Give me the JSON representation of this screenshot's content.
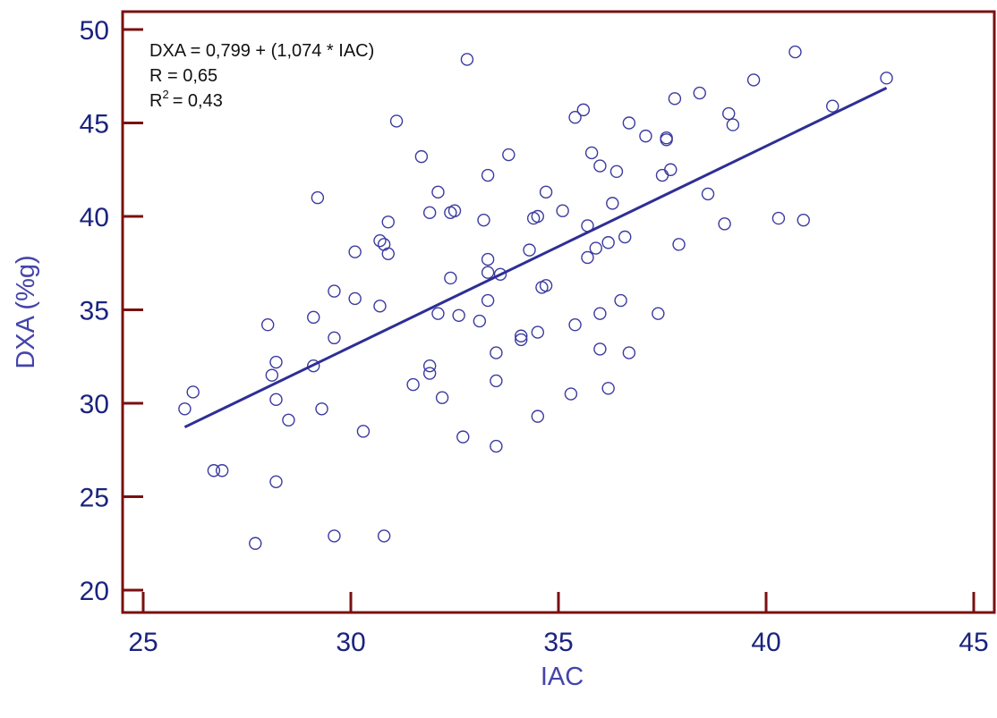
{
  "chart_data": {
    "type": "scatter",
    "xlabel": "IAC",
    "ylabel": "DXA (%g)",
    "xlim": [
      25,
      45
    ],
    "ylim": [
      20,
      50
    ],
    "x_ticks": [
      25,
      30,
      35,
      40,
      45
    ],
    "y_ticks": [
      20,
      25,
      30,
      35,
      40,
      45,
      50
    ],
    "grid": false,
    "colors": {
      "frame": "#7a1010",
      "points": "#3a3aa0",
      "line": "#2e2e96",
      "ticks": "#1a237e",
      "axis_title": "#4444aa"
    },
    "annotations": {
      "equation": "DXA = 0,799 + (1,074 * IAC)",
      "r": "R = 0,65",
      "r2_prefix": "R",
      "r2_sup": "2",
      "r2_value": "= 0,43"
    },
    "regression": {
      "intercept": 0.799,
      "slope": 1.074,
      "x_range": [
        26,
        42.9
      ]
    },
    "series": [
      {
        "points": [
          [
            26.0,
            29.7
          ],
          [
            26.2,
            30.6
          ],
          [
            26.7,
            26.4
          ],
          [
            26.9,
            26.4
          ],
          [
            27.7,
            22.5
          ],
          [
            28.0,
            34.2
          ],
          [
            28.1,
            31.5
          ],
          [
            28.2,
            32.2
          ],
          [
            28.2,
            30.2
          ],
          [
            28.2,
            25.8
          ],
          [
            28.5,
            29.1
          ],
          [
            29.1,
            34.6
          ],
          [
            29.1,
            32.0
          ],
          [
            29.2,
            41.0
          ],
          [
            29.3,
            29.7
          ],
          [
            29.6,
            36.0
          ],
          [
            29.6,
            33.5
          ],
          [
            29.6,
            22.9
          ],
          [
            30.1,
            38.1
          ],
          [
            30.1,
            35.6
          ],
          [
            30.3,
            28.5
          ],
          [
            30.7,
            38.7
          ],
          [
            30.7,
            35.2
          ],
          [
            30.8,
            38.5
          ],
          [
            30.8,
            22.9
          ],
          [
            30.9,
            38.0
          ],
          [
            30.9,
            39.7
          ],
          [
            31.1,
            45.1
          ],
          [
            31.5,
            31.0
          ],
          [
            31.7,
            43.2
          ],
          [
            31.9,
            40.2
          ],
          [
            31.9,
            32.0
          ],
          [
            31.9,
            31.6
          ],
          [
            32.1,
            34.8
          ],
          [
            32.1,
            41.3
          ],
          [
            32.2,
            30.3
          ],
          [
            32.4,
            36.7
          ],
          [
            32.4,
            40.2
          ],
          [
            32.5,
            40.3
          ],
          [
            32.6,
            34.7
          ],
          [
            32.7,
            28.2
          ],
          [
            32.8,
            48.4
          ],
          [
            33.1,
            34.4
          ],
          [
            33.2,
            39.8
          ],
          [
            33.3,
            42.2
          ],
          [
            33.3,
            37.7
          ],
          [
            33.3,
            37.0
          ],
          [
            33.3,
            35.5
          ],
          [
            33.5,
            32.7
          ],
          [
            33.5,
            31.2
          ],
          [
            33.5,
            27.7
          ],
          [
            33.6,
            36.9
          ],
          [
            33.8,
            43.3
          ],
          [
            34.1,
            33.6
          ],
          [
            34.1,
            33.4
          ],
          [
            34.3,
            38.2
          ],
          [
            34.4,
            39.9
          ],
          [
            34.5,
            33.8
          ],
          [
            34.5,
            29.3
          ],
          [
            34.5,
            40.0
          ],
          [
            34.6,
            36.2
          ],
          [
            34.7,
            36.3
          ],
          [
            34.7,
            41.3
          ],
          [
            35.1,
            40.3
          ],
          [
            35.3,
            30.5
          ],
          [
            35.4,
            34.2
          ],
          [
            35.4,
            45.3
          ],
          [
            35.6,
            45.7
          ],
          [
            35.7,
            39.5
          ],
          [
            35.7,
            37.8
          ],
          [
            35.8,
            43.4
          ],
          [
            35.9,
            38.3
          ],
          [
            36.0,
            42.7
          ],
          [
            36.0,
            34.8
          ],
          [
            36.0,
            32.9
          ],
          [
            36.2,
            30.8
          ],
          [
            36.2,
            38.6
          ],
          [
            36.3,
            40.7
          ],
          [
            36.4,
            42.4
          ],
          [
            36.5,
            35.5
          ],
          [
            36.6,
            38.9
          ],
          [
            36.7,
            32.7
          ],
          [
            36.7,
            45.0
          ],
          [
            37.1,
            44.3
          ],
          [
            37.4,
            34.8
          ],
          [
            37.5,
            42.2
          ],
          [
            37.6,
            44.2
          ],
          [
            37.6,
            44.1
          ],
          [
            37.7,
            42.5
          ],
          [
            37.8,
            46.3
          ],
          [
            37.9,
            38.5
          ],
          [
            38.4,
            46.6
          ],
          [
            38.6,
            41.2
          ],
          [
            39.0,
            39.6
          ],
          [
            39.1,
            45.5
          ],
          [
            39.2,
            44.9
          ],
          [
            39.7,
            47.3
          ],
          [
            40.3,
            39.9
          ],
          [
            40.7,
            48.8
          ],
          [
            40.9,
            39.8
          ],
          [
            41.6,
            45.9
          ],
          [
            42.9,
            47.4
          ]
        ]
      }
    ]
  }
}
